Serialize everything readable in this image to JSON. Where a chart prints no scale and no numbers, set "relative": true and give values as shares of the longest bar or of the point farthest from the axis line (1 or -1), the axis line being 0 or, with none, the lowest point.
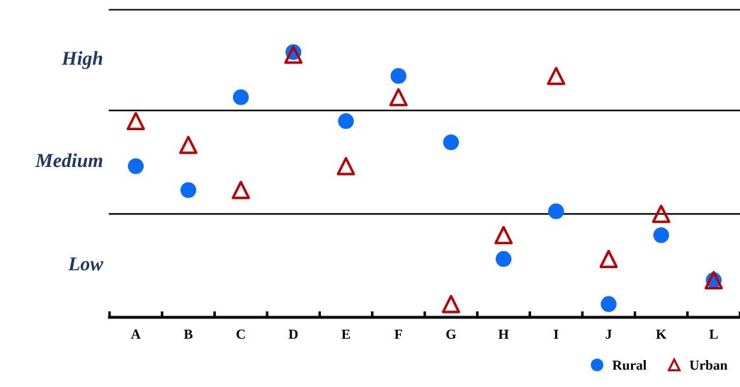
{
  "chart_data": {
    "type": "scatter",
    "relative": true,
    "categories": [
      "A",
      "B",
      "C",
      "D",
      "E",
      "F",
      "G",
      "H",
      "I",
      "J",
      "K",
      "L"
    ],
    "series": [
      {
        "name": "Rural",
        "color": "#0a6cf5",
        "marker": "circle",
        "values": [
          0.57,
          0.48,
          0.83,
          1,
          0.74,
          0.91,
          0.66,
          0.22,
          0.4,
          0.05,
          0.31,
          0.14
        ]
      },
      {
        "name": "Urban",
        "color": "#c00000",
        "marker": "triangle",
        "values": [
          0.74,
          0.65,
          0.48,
          0.99,
          0.57,
          0.83,
          0.05,
          0.31,
          0.91,
          0.22,
          0.39,
          0.14
        ]
      }
    ],
    "ref_lines": [
      {
        "axis": "y",
        "value": 0.39
      },
      {
        "axis": "y",
        "value": 0.78
      },
      {
        "axis": "y",
        "value": 1.16
      }
    ],
    "annotations": [
      "Low",
      "Medium",
      "High"
    ],
    "legend": "bottom right"
  }
}
